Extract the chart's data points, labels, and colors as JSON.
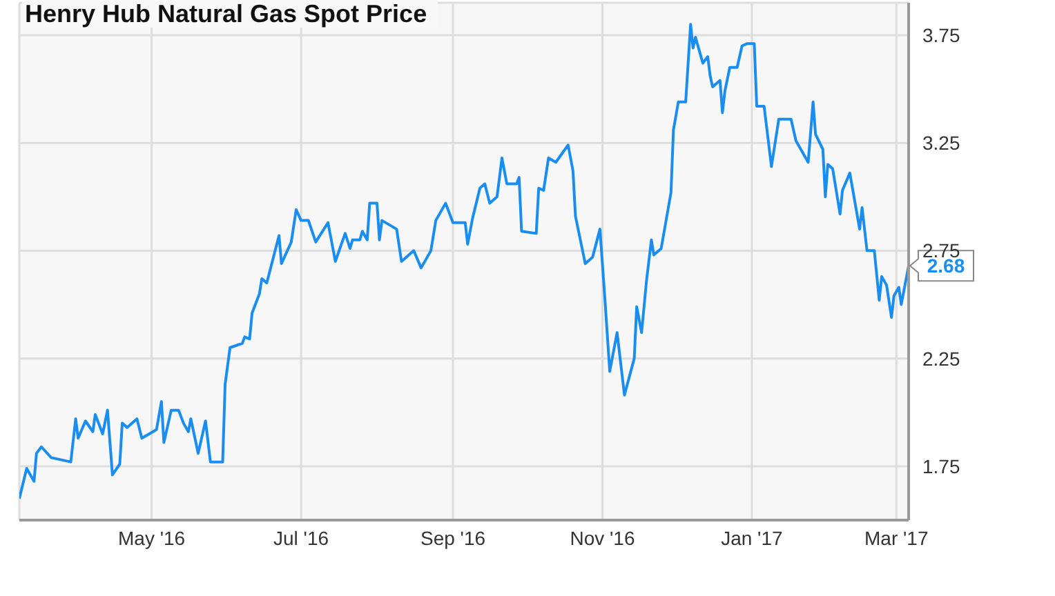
{
  "chart_data": {
    "type": "line",
    "title": "Henry Hub Natural Gas Spot Price",
    "x": [
      "2016-03-08",
      "2016-03-11",
      "2016-03-14",
      "2016-03-15",
      "2016-03-17",
      "2016-03-21",
      "2016-03-29",
      "2016-03-31",
      "2016-04-01",
      "2016-04-04",
      "2016-04-07",
      "2016-04-08",
      "2016-04-11",
      "2016-04-13",
      "2016-04-15",
      "2016-04-18",
      "2016-04-19",
      "2016-04-21",
      "2016-04-25",
      "2016-04-27",
      "2016-05-03",
      "2016-05-05",
      "2016-05-06",
      "2016-05-09",
      "2016-05-12",
      "2016-05-14",
      "2016-05-16",
      "2016-05-17",
      "2016-05-20",
      "2016-05-23",
      "2016-05-25",
      "2016-05-30",
      "2016-05-31",
      "2016-06-02",
      "2016-06-07",
      "2016-06-08",
      "2016-06-10",
      "2016-06-11",
      "2016-06-14",
      "2016-06-15",
      "2016-06-17",
      "2016-06-22",
      "2016-06-23",
      "2016-06-27",
      "2016-06-29",
      "2016-07-01",
      "2016-07-04",
      "2016-07-07",
      "2016-07-12",
      "2016-07-15",
      "2016-07-19",
      "2016-07-21",
      "2016-07-22",
      "2016-07-25",
      "2016-07-26",
      "2016-07-28",
      "2016-07-29",
      "2016-08-01",
      "2016-08-02",
      "2016-08-03",
      "2016-08-09",
      "2016-08-11",
      "2016-08-16",
      "2016-08-19",
      "2016-08-23",
      "2016-08-25",
      "2016-08-29",
      "2016-09-01",
      "2016-09-06",
      "2016-09-07",
      "2016-09-09",
      "2016-09-12",
      "2016-09-14",
      "2016-09-16",
      "2016-09-19",
      "2016-09-21",
      "2016-09-23",
      "2016-09-27",
      "2016-09-28",
      "2016-09-29",
      "2016-10-05",
      "2016-10-06",
      "2016-10-08",
      "2016-10-10",
      "2016-10-13",
      "2016-10-18",
      "2016-10-20",
      "2016-10-21",
      "2016-10-25",
      "2016-10-28",
      "2016-10-31",
      "2016-11-02",
      "2016-11-04",
      "2016-11-07",
      "2016-11-10",
      "2016-11-14",
      "2016-11-15",
      "2016-11-17",
      "2016-11-19",
      "2016-11-21",
      "2016-11-22",
      "2016-11-25",
      "2016-11-29",
      "2016-11-30",
      "2016-12-02",
      "2016-12-05",
      "2016-12-07",
      "2016-12-08",
      "2016-12-09",
      "2016-12-12",
      "2016-12-14",
      "2016-12-15",
      "2016-12-16",
      "2016-12-19",
      "2016-12-20",
      "2016-12-21",
      "2016-12-23",
      "2016-12-26",
      "2016-12-28",
      "2016-12-30",
      "2017-01-02",
      "2017-01-03",
      "2017-01-06",
      "2017-01-09",
      "2017-01-12",
      "2017-01-17",
      "2017-01-19",
      "2017-01-24",
      "2017-01-26",
      "2017-01-27",
      "2017-01-30",
      "2017-01-31",
      "2017-02-01",
      "2017-02-03",
      "2017-02-06",
      "2017-02-07",
      "2017-02-10",
      "2017-02-14",
      "2017-02-15",
      "2017-02-17",
      "2017-02-20",
      "2017-02-22",
      "2017-02-23",
      "2017-02-25",
      "2017-02-27",
      "2017-02-28",
      "2017-03-02",
      "2017-03-03",
      "2017-03-06"
    ],
    "series": [
      {
        "color": "#1a8ef0",
        "values": [
          1.6,
          1.74,
          1.68,
          1.81,
          1.84,
          1.79,
          1.77,
          1.97,
          1.88,
          1.96,
          1.91,
          1.99,
          1.9,
          2.01,
          1.71,
          1.76,
          1.95,
          1.93,
          1.97,
          1.88,
          1.92,
          2.05,
          1.86,
          2.01,
          2.01,
          1.95,
          1.91,
          1.97,
          1.81,
          1.96,
          1.77,
          1.77,
          2.13,
          2.3,
          2.32,
          2.35,
          2.34,
          2.46,
          2.55,
          2.62,
          2.6,
          2.82,
          2.69,
          2.79,
          2.94,
          2.89,
          2.89,
          2.79,
          2.88,
          2.7,
          2.83,
          2.76,
          2.8,
          2.8,
          2.84,
          2.8,
          2.97,
          2.97,
          2.8,
          2.89,
          2.85,
          2.7,
          2.75,
          2.67,
          2.75,
          2.89,
          2.97,
          2.88,
          2.88,
          2.78,
          2.9,
          3.04,
          3.06,
          2.97,
          3.0,
          3.18,
          3.06,
          3.06,
          3.09,
          2.84,
          2.83,
          3.04,
          3.03,
          3.18,
          3.16,
          3.24,
          3.12,
          2.91,
          2.69,
          2.72,
          2.85,
          2.53,
          2.19,
          2.37,
          2.08,
          2.25,
          2.49,
          2.37,
          2.61,
          2.8,
          2.73,
          2.76,
          3.02,
          3.31,
          3.44,
          3.44,
          3.8,
          3.69,
          3.74,
          3.62,
          3.65,
          3.56,
          3.51,
          3.54,
          3.39,
          3.49,
          3.6,
          3.6,
          3.7,
          3.71,
          3.71,
          3.42,
          3.42,
          3.14,
          3.36,
          3.36,
          3.26,
          3.16,
          3.44,
          3.29,
          3.22,
          3.0,
          3.15,
          3.13,
          2.92,
          3.03,
          3.11,
          2.85,
          2.95,
          2.75,
          2.75,
          2.52,
          2.63,
          2.59,
          2.44,
          2.54,
          2.58,
          2.5,
          2.68
        ]
      }
    ],
    "xlim": [
      "2016-03-08",
      "2017-03-06"
    ],
    "xticks": [
      {
        "value": "2016-05-01",
        "label": "May '16"
      },
      {
        "value": "2016-07-01",
        "label": "Jul '16"
      },
      {
        "value": "2016-09-01",
        "label": "Sep '16"
      },
      {
        "value": "2016-11-01",
        "label": "Nov '16"
      },
      {
        "value": "2017-01-01",
        "label": "Jan '17"
      },
      {
        "value": "2017-03-01",
        "label": "Mar '17"
      }
    ],
    "ylim": [
      1.5,
      3.9
    ],
    "yticks": [
      1.75,
      2.25,
      2.75,
      3.25,
      3.75
    ],
    "grid": true,
    "marker": "none",
    "line_style": "solid",
    "annotations": [
      {
        "text": "2.68",
        "x": "2017-03-06",
        "y": 2.68
      }
    ]
  }
}
